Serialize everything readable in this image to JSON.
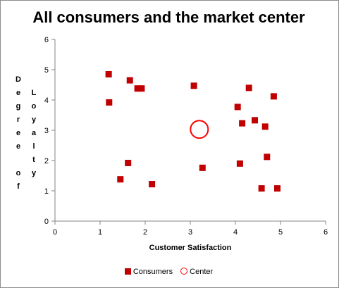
{
  "chart_data": {
    "type": "scatter",
    "title": "All consumers and the market center",
    "xlabel": "Customer Satisfaction",
    "ylabel_col1": [
      "D",
      "e",
      "g",
      "r",
      "e",
      "e",
      "",
      "o",
      "f"
    ],
    "ylabel_col2": [
      "L",
      "o",
      "y",
      "a",
      "l",
      "t",
      "y"
    ],
    "xlim": [
      0,
      6
    ],
    "ylim": [
      0,
      6
    ],
    "xticks": [
      "0",
      "1",
      "2",
      "3",
      "4",
      "5",
      "6"
    ],
    "yticks": [
      "0",
      "1",
      "2",
      "3",
      "4",
      "5",
      "6"
    ],
    "series": [
      {
        "name": "Consumers",
        "marker": "square",
        "color": "#c00000",
        "x": [
          1.19,
          1.2,
          1.66,
          1.83,
          1.92,
          1.45,
          1.62,
          2.15,
          3.08,
          3.27,
          4.05,
          4.15,
          4.3,
          4.43,
          4.66,
          4.85,
          4.1,
          4.7,
          4.58,
          4.93
        ],
        "y": [
          4.85,
          3.92,
          4.65,
          4.38,
          4.38,
          1.38,
          1.92,
          1.22,
          4.47,
          1.76,
          3.77,
          3.23,
          4.4,
          3.33,
          3.12,
          4.12,
          1.9,
          2.12,
          1.08,
          1.08
        ]
      },
      {
        "name": "Center",
        "marker": "circle",
        "color": "#ff0000",
        "x": [
          3.2
        ],
        "y": [
          3.03
        ]
      }
    ],
    "grid": false,
    "legend_position": "bottom"
  }
}
